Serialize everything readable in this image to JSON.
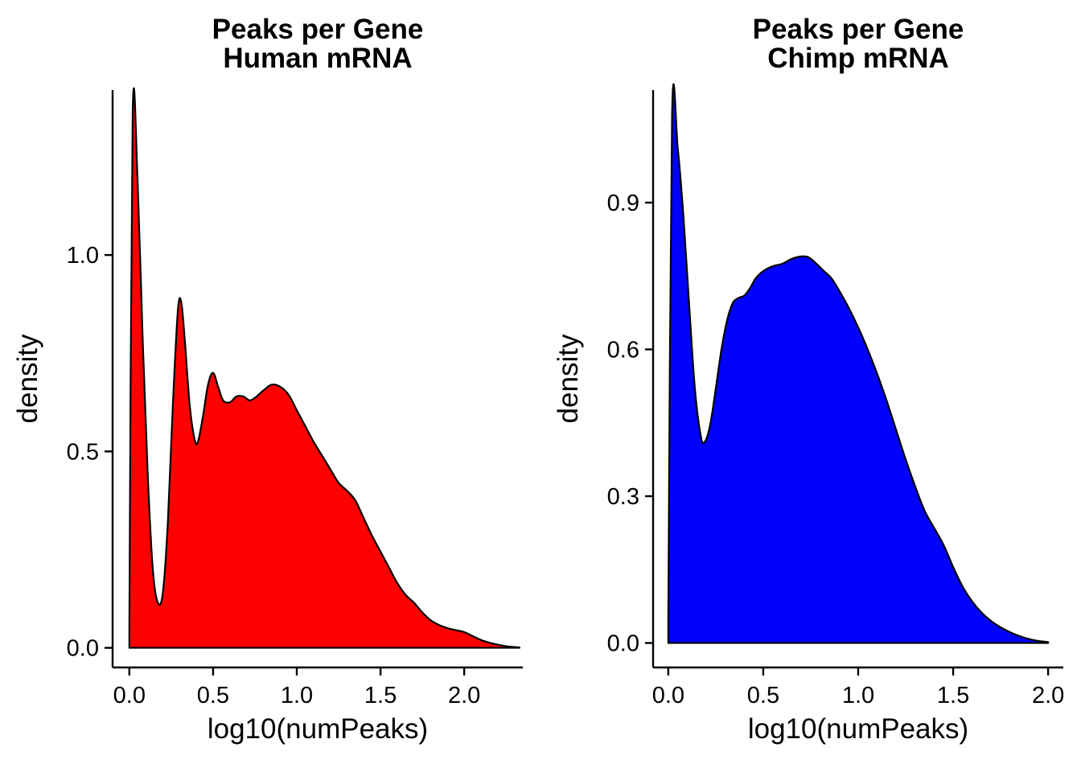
{
  "page": {
    "background": "#ffffff"
  },
  "chart_data": [
    {
      "type": "area",
      "id": "human",
      "title_line1": "Peaks per Gene",
      "title_line2": "Human mRNA",
      "xlabel": "log10(numPeaks)",
      "ylabel": "density",
      "fill_color": "#FF0000",
      "stroke_color": "#000000",
      "grid": "off",
      "legend": "none",
      "xlim": [
        -0.1,
        2.35
      ],
      "ylim": [
        -0.05,
        1.42
      ],
      "x_ticks": [
        0.0,
        0.5,
        1.0,
        1.5,
        2.0
      ],
      "x_tick_labels": [
        "0.0",
        "0.5",
        "1.0",
        "1.5",
        "2.0"
      ],
      "y_ticks": [
        0.0,
        0.5,
        1.0
      ],
      "y_tick_labels": [
        "0.0",
        "0.5",
        "1.0"
      ],
      "points": [
        [
          0.0,
          0.05
        ],
        [
          0.02,
          1.36
        ],
        [
          0.05,
          1.18
        ],
        [
          0.08,
          0.78
        ],
        [
          0.11,
          0.44
        ],
        [
          0.14,
          0.2
        ],
        [
          0.17,
          0.115
        ],
        [
          0.2,
          0.14
        ],
        [
          0.23,
          0.32
        ],
        [
          0.26,
          0.62
        ],
        [
          0.29,
          0.86
        ],
        [
          0.31,
          0.88
        ],
        [
          0.33,
          0.79
        ],
        [
          0.36,
          0.62
        ],
        [
          0.39,
          0.53
        ],
        [
          0.41,
          0.525
        ],
        [
          0.44,
          0.59
        ],
        [
          0.47,
          0.67
        ],
        [
          0.5,
          0.7
        ],
        [
          0.53,
          0.665
        ],
        [
          0.56,
          0.63
        ],
        [
          0.6,
          0.625
        ],
        [
          0.64,
          0.64
        ],
        [
          0.68,
          0.64
        ],
        [
          0.72,
          0.63
        ],
        [
          0.76,
          0.64
        ],
        [
          0.8,
          0.655
        ],
        [
          0.85,
          0.67
        ],
        [
          0.9,
          0.665
        ],
        [
          0.95,
          0.645
        ],
        [
          1.0,
          0.605
        ],
        [
          1.05,
          0.565
        ],
        [
          1.1,
          0.525
        ],
        [
          1.15,
          0.49
        ],
        [
          1.2,
          0.455
        ],
        [
          1.25,
          0.42
        ],
        [
          1.3,
          0.4
        ],
        [
          1.35,
          0.375
        ],
        [
          1.4,
          0.33
        ],
        [
          1.45,
          0.285
        ],
        [
          1.5,
          0.245
        ],
        [
          1.55,
          0.205
        ],
        [
          1.6,
          0.165
        ],
        [
          1.65,
          0.135
        ],
        [
          1.7,
          0.115
        ],
        [
          1.75,
          0.09
        ],
        [
          1.8,
          0.07
        ],
        [
          1.85,
          0.058
        ],
        [
          1.9,
          0.05
        ],
        [
          1.95,
          0.045
        ],
        [
          2.0,
          0.04
        ],
        [
          2.05,
          0.03
        ],
        [
          2.1,
          0.02
        ],
        [
          2.15,
          0.013
        ],
        [
          2.2,
          0.008
        ],
        [
          2.25,
          0.004
        ],
        [
          2.3,
          0.002
        ],
        [
          2.33,
          0.001
        ]
      ]
    },
    {
      "type": "area",
      "id": "chimp",
      "title_line1": "Peaks per Gene",
      "title_line2": "Chimp mRNA",
      "xlabel": "log10(numPeaks)",
      "ylabel": "density",
      "fill_color": "#0000FF",
      "stroke_color": "#000000",
      "grid": "off",
      "legend": "none",
      "xlim": [
        -0.08,
        2.08
      ],
      "ylim": [
        -0.05,
        1.13
      ],
      "x_ticks": [
        0.0,
        0.5,
        1.0,
        1.5,
        2.0
      ],
      "x_tick_labels": [
        "0.0",
        "0.5",
        "1.0",
        "1.5",
        "2.0"
      ],
      "y_ticks": [
        0.0,
        0.3,
        0.6,
        0.9
      ],
      "y_tick_labels": [
        "0.0",
        "0.3",
        "0.6",
        "0.9"
      ],
      "points": [
        [
          0.0,
          0.05
        ],
        [
          0.02,
          1.08
        ],
        [
          0.05,
          1.01
        ],
        [
          0.08,
          0.87
        ],
        [
          0.11,
          0.69
        ],
        [
          0.14,
          0.52
        ],
        [
          0.17,
          0.425
        ],
        [
          0.19,
          0.41
        ],
        [
          0.22,
          0.445
        ],
        [
          0.25,
          0.52
        ],
        [
          0.28,
          0.6
        ],
        [
          0.31,
          0.66
        ],
        [
          0.34,
          0.695
        ],
        [
          0.37,
          0.705
        ],
        [
          0.4,
          0.71
        ],
        [
          0.43,
          0.725
        ],
        [
          0.46,
          0.745
        ],
        [
          0.5,
          0.76
        ],
        [
          0.55,
          0.77
        ],
        [
          0.6,
          0.775
        ],
        [
          0.65,
          0.785
        ],
        [
          0.7,
          0.79
        ],
        [
          0.74,
          0.788
        ],
        [
          0.78,
          0.775
        ],
        [
          0.82,
          0.76
        ],
        [
          0.86,
          0.745
        ],
        [
          0.9,
          0.72
        ],
        [
          0.95,
          0.685
        ],
        [
          1.0,
          0.645
        ],
        [
          1.05,
          0.6
        ],
        [
          1.1,
          0.55
        ],
        [
          1.15,
          0.495
        ],
        [
          1.2,
          0.435
        ],
        [
          1.25,
          0.375
        ],
        [
          1.3,
          0.32
        ],
        [
          1.35,
          0.27
        ],
        [
          1.4,
          0.235
        ],
        [
          1.45,
          0.2
        ],
        [
          1.5,
          0.155
        ],
        [
          1.55,
          0.115
        ],
        [
          1.6,
          0.085
        ],
        [
          1.65,
          0.062
        ],
        [
          1.7,
          0.045
        ],
        [
          1.75,
          0.032
        ],
        [
          1.8,
          0.022
        ],
        [
          1.85,
          0.014
        ],
        [
          1.9,
          0.008
        ],
        [
          1.95,
          0.004
        ],
        [
          2.0,
          0.002
        ]
      ]
    }
  ]
}
